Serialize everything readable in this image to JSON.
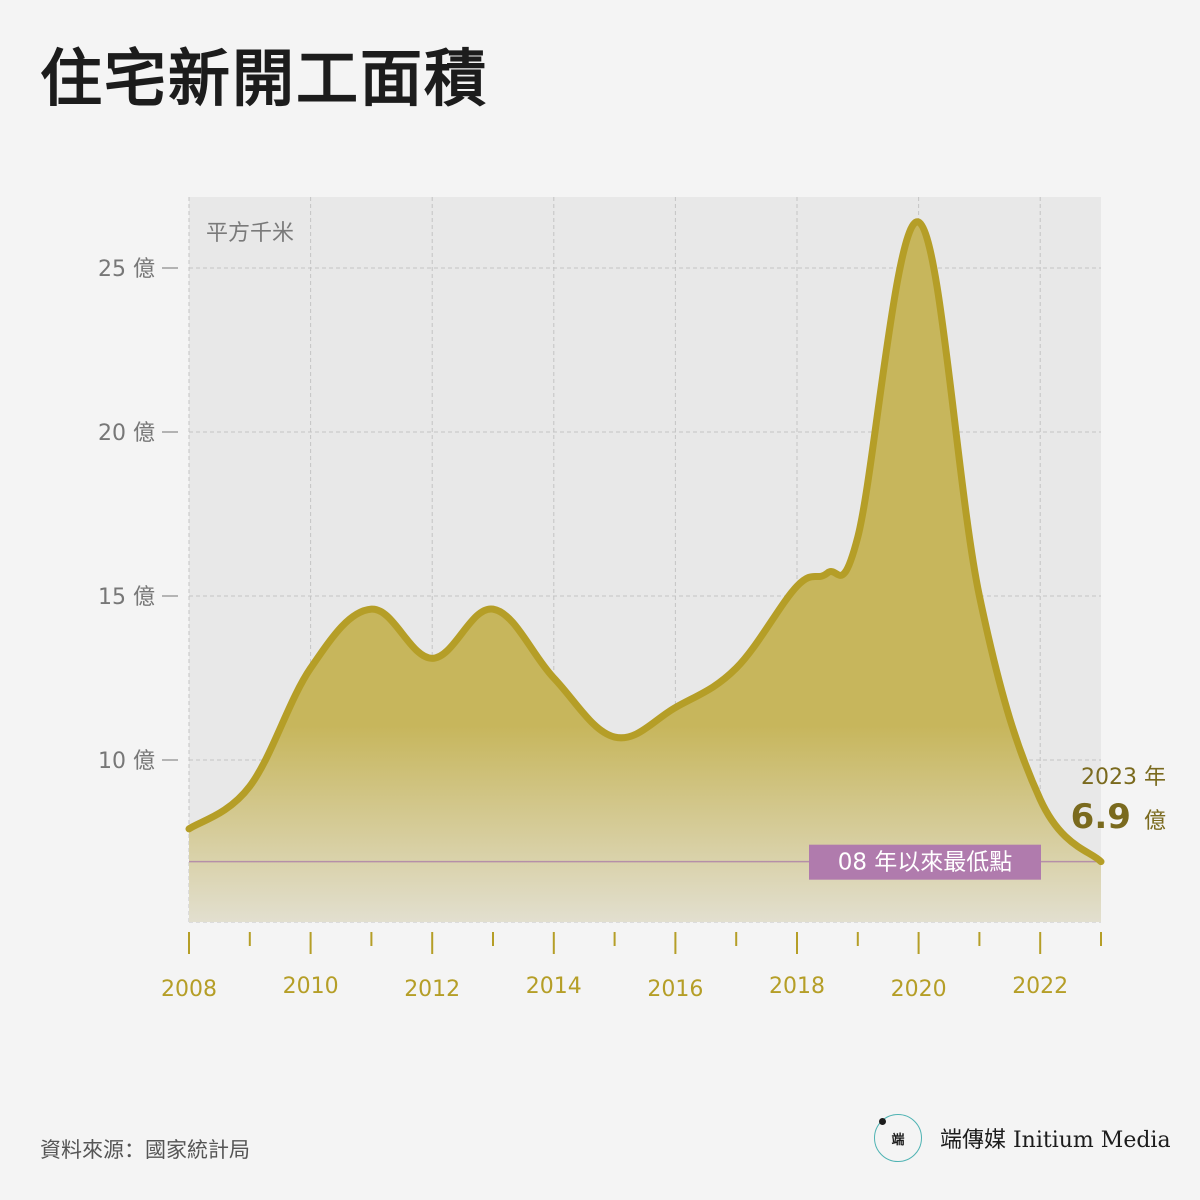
{
  "title": "住宅新開工面積",
  "source": "資料來源：國家統計局",
  "brand": {
    "logo_text": "端",
    "name": "端傳媒 Initium Media"
  },
  "colors": {
    "background": "#f4f4f4",
    "plot_background": "#e8e8e8",
    "line": "#b59e27",
    "fill_top": "#c7b65c",
    "fill_bottom": "#e2dfcf",
    "x_tick_label": "#b59e27",
    "y_tick_label": "#777777",
    "annotation": "#7a6a1e",
    "low_line": "#b58fa8",
    "low_box": "#b07bad"
  },
  "chart_data": {
    "type": "area",
    "unit_label": "平方千米",
    "x_ticks": [
      "2008",
      "2010",
      "2012",
      "2014",
      "2016",
      "2018",
      "2020",
      "2022"
    ],
    "y_ticks": [
      "10 億",
      "15 億",
      "20 億",
      "25 億"
    ],
    "y_tick_values": [
      10,
      15,
      20,
      25
    ],
    "xlim": [
      2008,
      2023
    ],
    "ylim": [
      5,
      27
    ],
    "grid": true,
    "series": [
      {
        "x": [
          2008,
          2009,
          2010,
          2011,
          2012,
          2013,
          2014,
          2015,
          2016,
          2017,
          2018,
          2018.5,
          2019,
          2020,
          2021,
          2022,
          2023
        ],
        "values": [
          7.9,
          9.2,
          12.8,
          14.6,
          13.1,
          14.6,
          12.5,
          10.7,
          11.6,
          12.8,
          15.3,
          15.7,
          16.8,
          26.4,
          15.0,
          8.8,
          6.9
        ]
      }
    ],
    "low_point": {
      "value": 6.9,
      "label": "08 年以來最低點"
    },
    "end_annotation": {
      "year_label": "2023 年",
      "value_label": "6.9",
      "unit_label": "億"
    }
  }
}
